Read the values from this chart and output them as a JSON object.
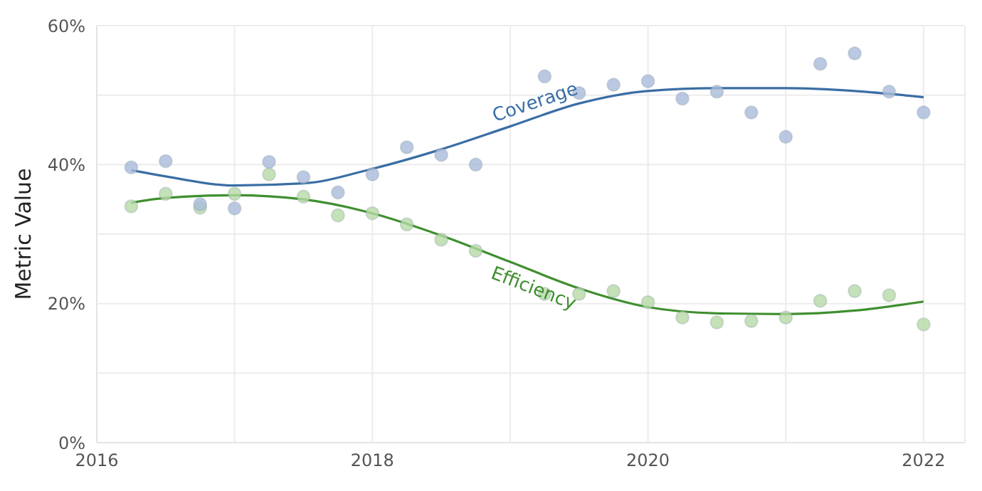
{
  "chart_data": {
    "type": "scatter",
    "ylabel": "Metric Value",
    "xlim": [
      2016,
      2022.3
    ],
    "ylim": [
      0,
      60
    ],
    "xticks": [
      2016,
      {
        "value": 2017,
        "label": null
      },
      2018,
      {
        "value": 2019,
        "label": null
      },
      2020,
      {
        "value": 2021,
        "label": null
      },
      2022
    ],
    "yticks": [
      {
        "value": 0,
        "label": "0%"
      },
      {
        "value": 10,
        "label": null
      },
      {
        "value": 20,
        "label": "20%"
      },
      {
        "value": 30,
        "label": null
      },
      {
        "value": 40,
        "label": "40%"
      },
      {
        "value": 50,
        "label": null
      },
      {
        "value": 60,
        "label": "60%"
      }
    ],
    "grid": true,
    "legend": false,
    "marker": "circle",
    "series": [
      {
        "type": "scatter",
        "color": "#a9bbd9",
        "x": [
          2016.25,
          2016.5,
          2016.75,
          2017,
          2017.25,
          2017.5,
          2017.75,
          2018,
          2018.25,
          2018.5,
          2018.75,
          2019.25,
          2019.5,
          2019.75,
          2020,
          2020.25,
          2020.5,
          2020.75,
          2021,
          2021.25,
          2021.5,
          2021.75,
          2022
        ],
        "values": [
          39.6,
          40.5,
          34.3,
          33.7,
          40.4,
          38.2,
          36,
          38.6,
          42.5,
          41.4,
          40,
          52.7,
          50.3,
          51.5,
          52,
          49.5,
          50.5,
          47.5,
          44,
          54.5,
          56,
          50.5,
          47.5
        ]
      },
      {
        "type": "scatter",
        "color": "#b5d9a5",
        "x": [
          2016.25,
          2016.5,
          2016.75,
          2017,
          2017.25,
          2017.5,
          2017.75,
          2018,
          2018.25,
          2018.5,
          2018.75,
          2019.25,
          2019.5,
          2019.75,
          2020,
          2020.25,
          2020.5,
          2020.75,
          2021,
          2021.25,
          2021.5,
          2021.75,
          2022
        ],
        "values": [
          34,
          35.8,
          33.8,
          35.8,
          38.6,
          35.4,
          32.7,
          33,
          31.4,
          29.2,
          27.6,
          21.4,
          21.4,
          21.8,
          20.2,
          18,
          17.3,
          17.5,
          18,
          20.4,
          21.8,
          21.2,
          17
        ]
      },
      {
        "type": "line",
        "name": "Coverage",
        "color": "#3a6ea5",
        "marker": "none",
        "x": [
          2016.25,
          2016.5,
          2017,
          2017.5,
          2018,
          2018.5,
          2019,
          2019.5,
          2020,
          2020.5,
          2021,
          2021.5,
          2022
        ],
        "values": [
          39.2,
          38.3,
          37.0,
          37.3,
          39.4,
          42.2,
          45.5,
          48.8,
          50.6,
          51.0,
          51.0,
          50.6,
          49.7
        ]
      },
      {
        "type": "line",
        "name": "Efficiency",
        "color": "#3f8f2f",
        "marker": "none",
        "x": [
          2016.25,
          2016.5,
          2017,
          2017.5,
          2018,
          2018.5,
          2019,
          2019.5,
          2020,
          2020.5,
          2021,
          2021.5,
          2022
        ],
        "values": [
          34.5,
          35.2,
          35.6,
          35.0,
          33.0,
          29.8,
          26.0,
          22.2,
          19.5,
          18.6,
          18.5,
          19.0,
          20.3
        ]
      }
    ]
  }
}
